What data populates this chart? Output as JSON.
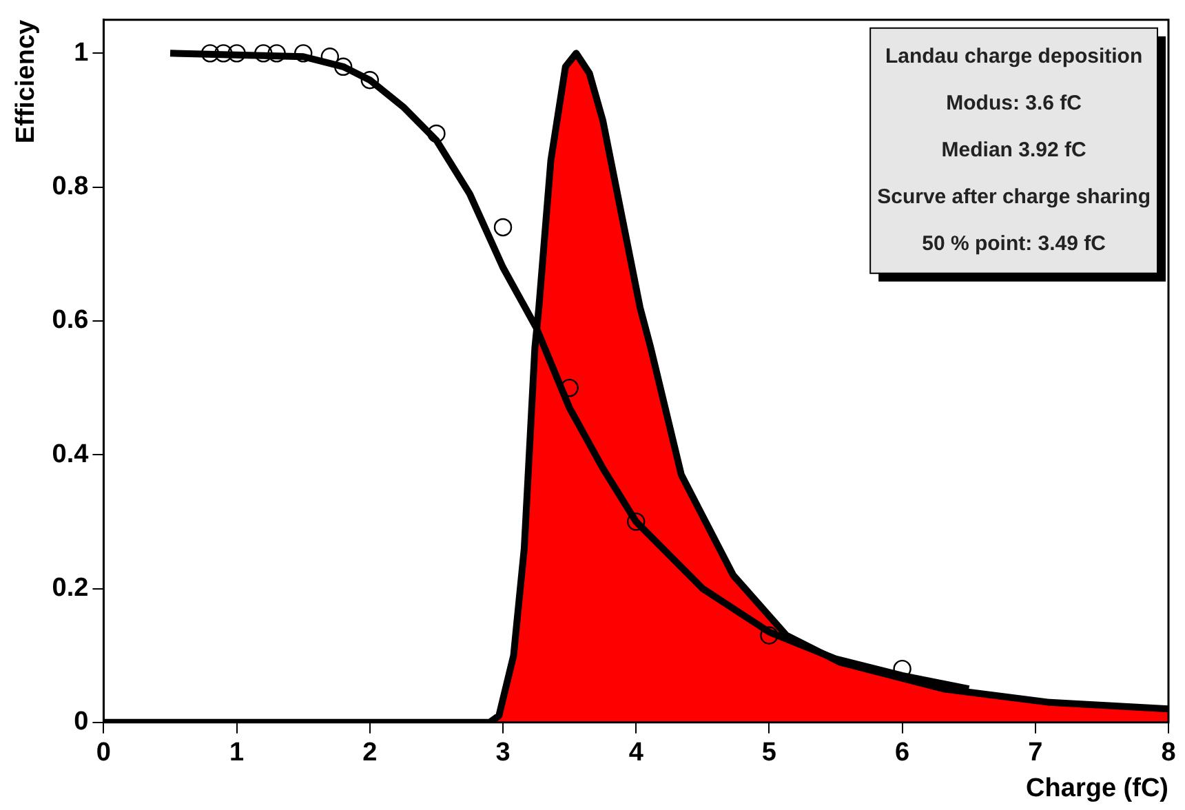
{
  "chart_data": {
    "type": "line",
    "xlabel": "Charge (fC)",
    "ylabel": "Efficiency",
    "xlim": [
      0,
      8
    ],
    "xticks": [
      0,
      1,
      2,
      3,
      4,
      5,
      6,
      7,
      8
    ],
    "ylim": [
      0,
      1.05
    ],
    "yticks": [
      0,
      0.2,
      0.4,
      0.6,
      0.8,
      1
    ],
    "grid": false,
    "legend": false,
    "annotations": [
      "Landau charge deposition",
      "Modus: 3.6 fC",
      "Median 3.92 fC",
      "Scurve after charge sharing",
      "50 % point: 3.49 fC"
    ],
    "series": [
      {
        "type": "area",
        "color": "#ff0000",
        "marker": "none",
        "x": [
          0,
          2.9,
          2.97,
          3.08,
          3.16,
          3.24,
          3.27,
          3.36,
          3.47,
          3.55,
          3.65,
          3.75,
          3.9,
          4.03,
          4.11,
          4.34,
          4.73,
          5.13,
          5.53,
          6.31,
          7.1,
          8
        ],
        "values": [
          0,
          0,
          0.01,
          0.1,
          0.26,
          0.56,
          0.62,
          0.84,
          0.98,
          1,
          0.97,
          0.9,
          0.75,
          0.62,
          0.56,
          0.37,
          0.22,
          0.13,
          0.09,
          0.05,
          0.03,
          0.02
        ]
      },
      {
        "color": "#000000",
        "marker": "none",
        "x": [
          0.5,
          1.5,
          1.8,
          2,
          2.25,
          2.5,
          2.75,
          3,
          3.25,
          3.5,
          3.75,
          4,
          4.5,
          5,
          5.5,
          6,
          6.5
        ],
        "values": [
          1,
          0.995,
          0.98,
          0.96,
          0.92,
          0.87,
          0.79,
          0.68,
          0.59,
          0.47,
          0.38,
          0.3,
          0.2,
          0.135,
          0.095,
          0.07,
          0.05
        ]
      },
      {
        "type": "scatter",
        "color": "#000000",
        "marker": "circle",
        "x": [
          0.8,
          0.9,
          1,
          1.2,
          1.3,
          1.5,
          1.7,
          1.8,
          2,
          2.5,
          3,
          3.5,
          4,
          5,
          6
        ],
        "values": [
          1,
          1,
          1,
          1,
          1,
          1,
          0.995,
          0.98,
          0.96,
          0.88,
          0.74,
          0.5,
          0.3,
          0.13,
          0.08
        ]
      }
    ]
  }
}
